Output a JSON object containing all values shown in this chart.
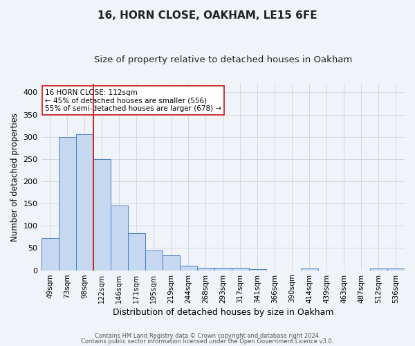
{
  "title1": "16, HORN CLOSE, OAKHAM, LE15 6FE",
  "title2": "Size of property relative to detached houses in Oakham",
  "xlabel": "Distribution of detached houses by size in Oakham",
  "ylabel": "Number of detached properties",
  "categories": [
    "49sqm",
    "73sqm",
    "98sqm",
    "122sqm",
    "146sqm",
    "171sqm",
    "195sqm",
    "219sqm",
    "244sqm",
    "268sqm",
    "293sqm",
    "317sqm",
    "341sqm",
    "366sqm",
    "390sqm",
    "414sqm",
    "439sqm",
    "463sqm",
    "487sqm",
    "512sqm",
    "536sqm"
  ],
  "values": [
    73,
    300,
    305,
    250,
    145,
    83,
    45,
    34,
    10,
    6,
    6,
    6,
    3,
    0,
    0,
    4,
    0,
    0,
    0,
    4,
    4
  ],
  "bar_color": "#c5d8f0",
  "bar_edge_color": "#4a7ec7",
  "grid_color": "#d0d8e4",
  "vline_x_idx": 2.5,
  "vline_color": "#cc2222",
  "annotation_text": "16 HORN CLOSE: 112sqm\n← 45% of detached houses are smaller (556)\n55% of semi-detached houses are larger (678) →",
  "annotation_box_color": "#ffffff",
  "annotation_box_edge": "#cc2222",
  "yticks": [
    0,
    50,
    100,
    150,
    200,
    250,
    300,
    350,
    400
  ],
  "ylim": [
    0,
    420
  ],
  "footnote1": "Contains HM Land Registry data © Crown copyright and database right 2024.",
  "footnote2": "Contains public sector information licensed under the Open Government Licence v3.0.",
  "background_color": "#f0f4f8",
  "title_fontsize": 11,
  "subtitle_fontsize": 9.5,
  "xlabel_fontsize": 9,
  "ylabel_fontsize": 8.5,
  "tick_fontsize": 7.5,
  "annot_fontsize": 7.5,
  "footnote_fontsize": 6
}
